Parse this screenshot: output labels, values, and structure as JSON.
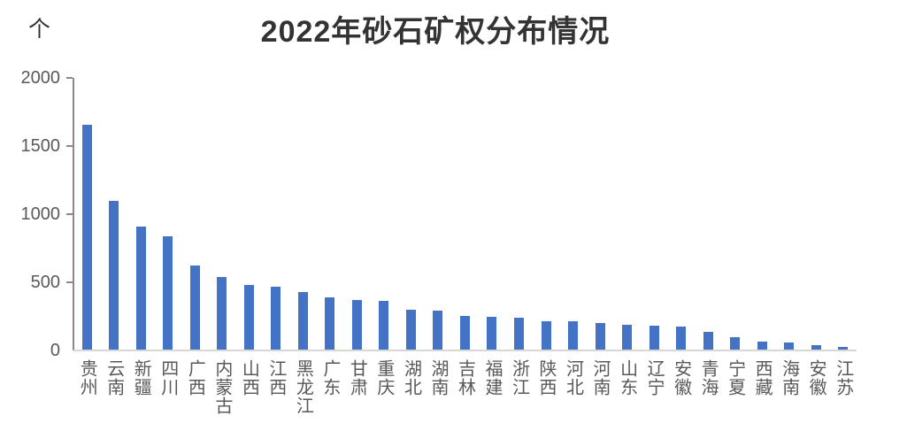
{
  "chart_data": {
    "type": "bar",
    "title": "2022年砂石矿权分布情况",
    "unit_label": "个",
    "categories": [
      "贵州",
      "云南",
      "新疆",
      "四川",
      "广西",
      "内蒙古",
      "山西",
      "江西",
      "黑龙江",
      "广东",
      "甘肃",
      "重庆",
      "湖北",
      "湖南",
      "吉林",
      "福建",
      "浙江",
      "陕西",
      "河北",
      "河南",
      "山东",
      "辽宁",
      "安徽",
      "青海",
      "宁夏",
      "西藏",
      "海南",
      "安徽",
      "江苏"
    ],
    "values": [
      1650,
      1090,
      900,
      830,
      620,
      530,
      475,
      460,
      420,
      380,
      365,
      355,
      295,
      285,
      245,
      240,
      235,
      210,
      205,
      195,
      180,
      175,
      172,
      130,
      90,
      60,
      55,
      35,
      18
    ],
    "ylim": [
      0,
      2000
    ],
    "yticks": [
      0,
      500,
      1000,
      1500,
      2000
    ],
    "xlabel": "",
    "ylabel": "个",
    "grid": false,
    "legend": false,
    "bar_color": "#4472C4",
    "axis_label_color": "#595959",
    "axis_line_color": "#898989",
    "baseline_color": "#d8d8d8",
    "title_color": "#333333"
  }
}
